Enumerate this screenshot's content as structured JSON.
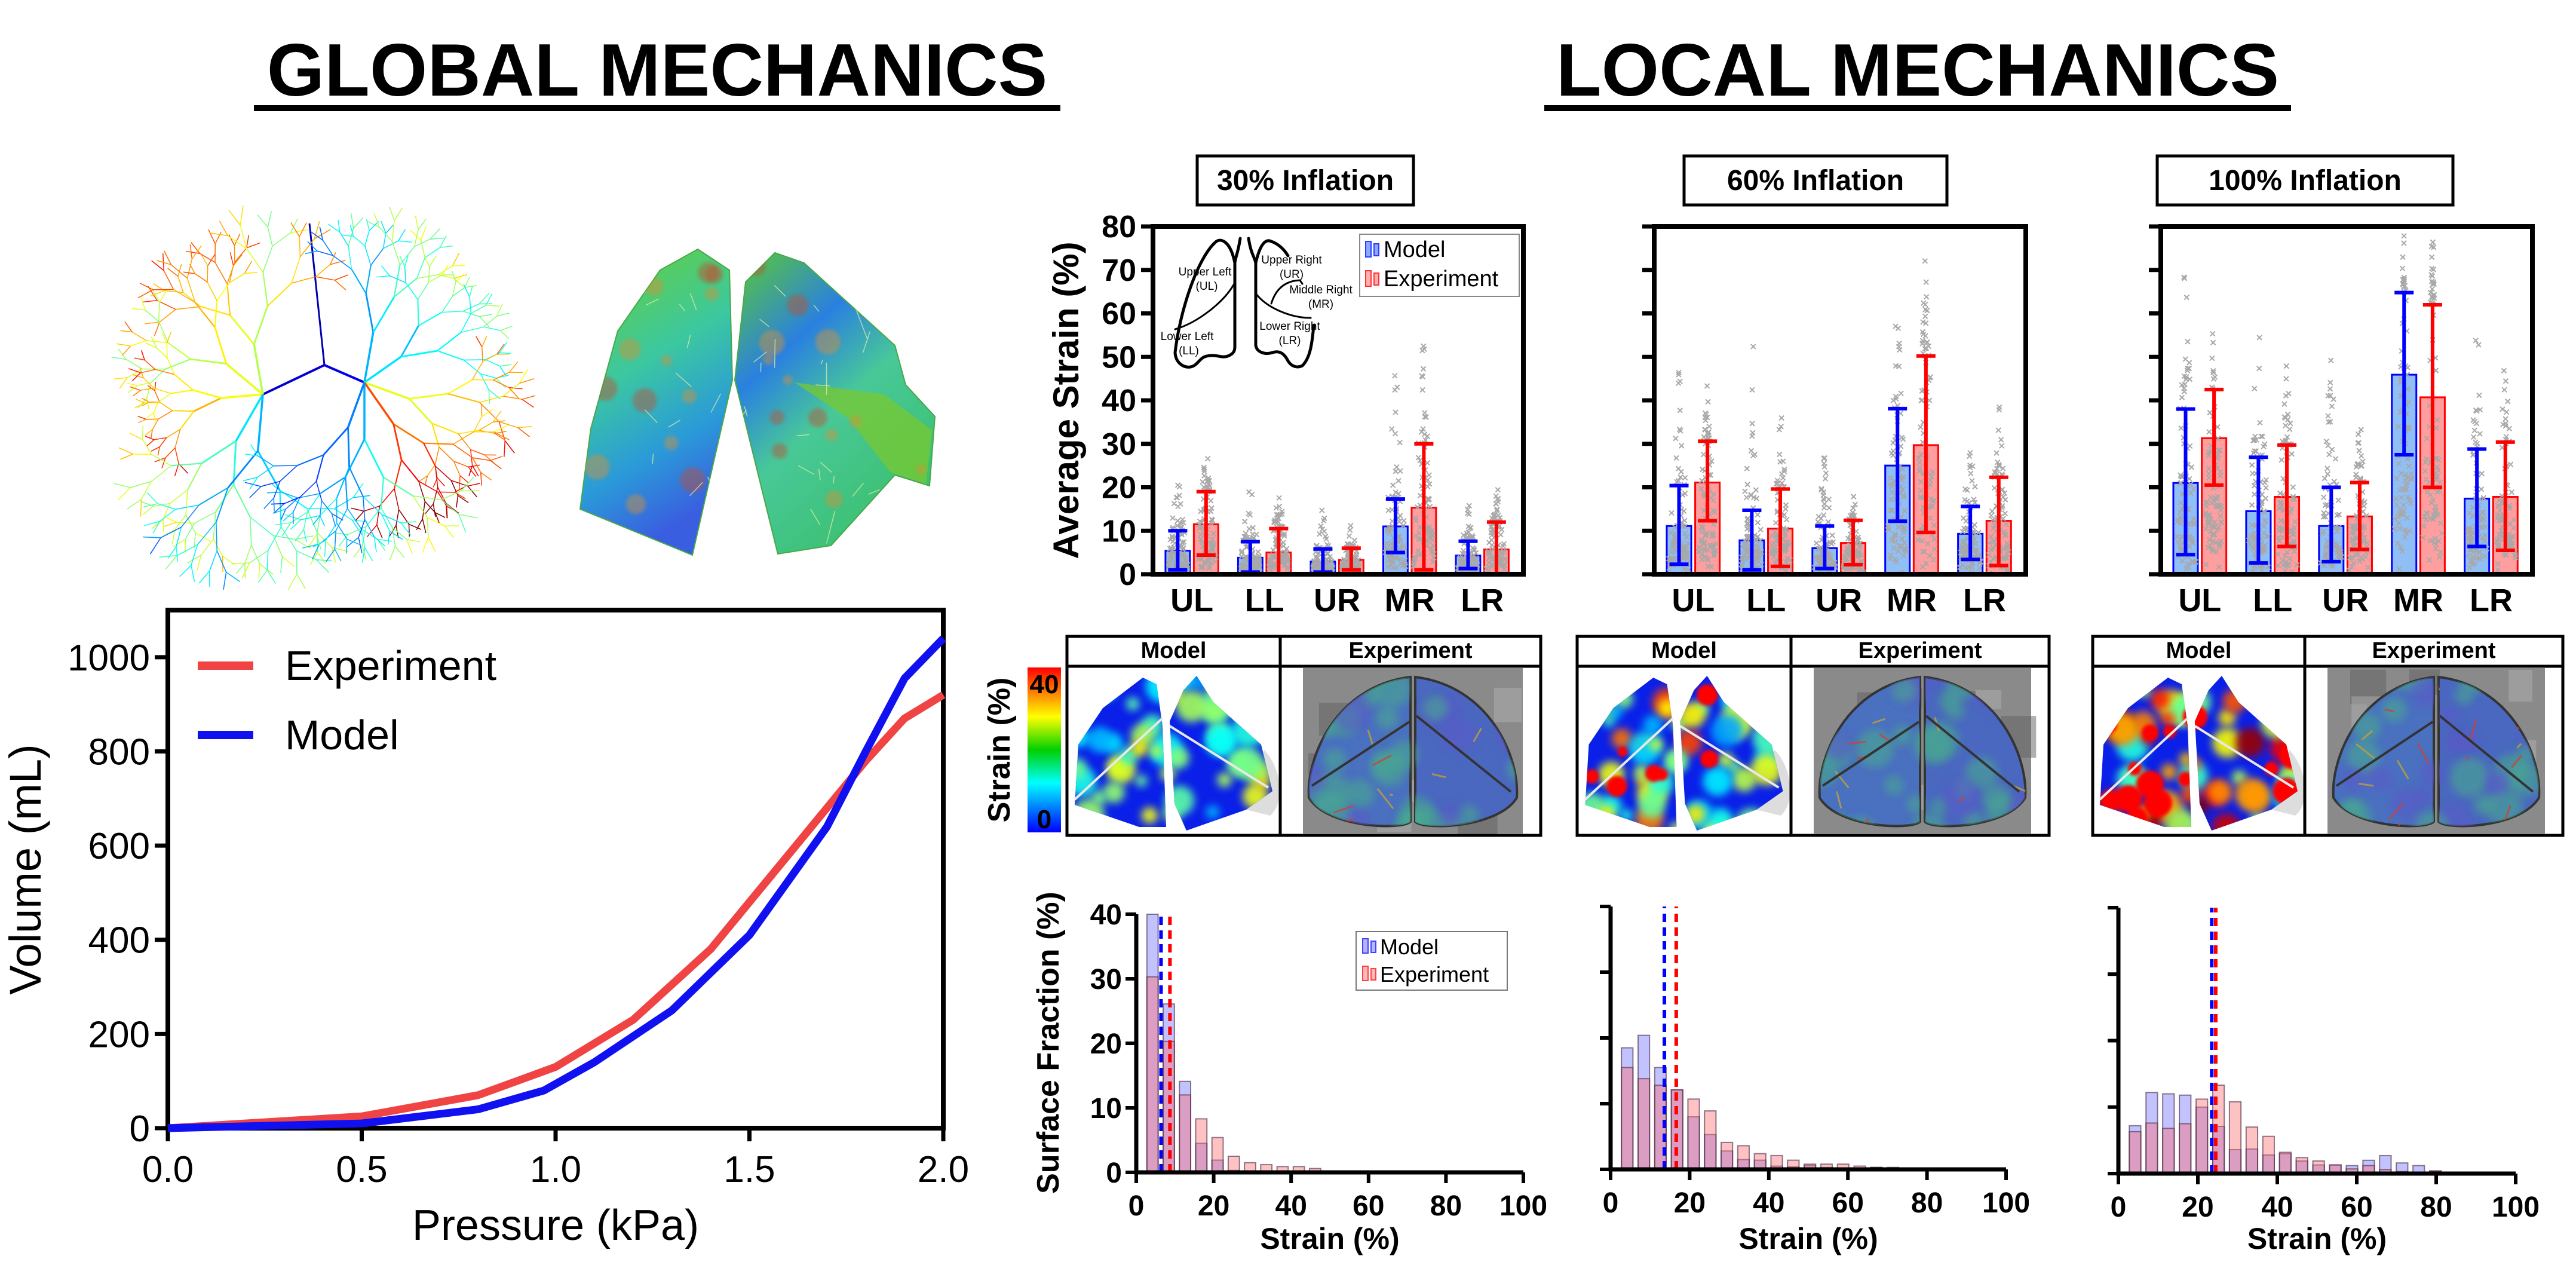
{
  "titles": {
    "global": "GLOBAL MECHANICS",
    "local": "LOCAL MECHANICS"
  },
  "colors": {
    "model": "#0000ff",
    "experiment": "#ff0000",
    "model_fill": "#90bff5",
    "experiment_fill": "#ff9e9e",
    "global_experiment": "#f04444",
    "global_model": "#1010f0"
  },
  "lobe_diagram": {
    "upper_left": "Upper Left",
    "upper_left_abbr": "(UL)",
    "lower_left": "Lower Left",
    "lower_left_abbr": "(LL)",
    "upper_right": "Upper Right",
    "upper_right_abbr": "(UR)",
    "middle_right": "Middle Right",
    "middle_right_abbr": "(MR)",
    "lower_right": "Lower Right",
    "lower_right_abbr": "(LR)"
  },
  "strain_maps": {
    "colorbar": {
      "label": "Strain (%)",
      "max": "40",
      "min": "0",
      "colormap": "jet"
    },
    "panels": [
      {
        "model": "Model",
        "experiment": "Experiment",
        "level": 0.3
      },
      {
        "model": "Model",
        "experiment": "Experiment",
        "level": 0.6
      },
      {
        "model": "Model",
        "experiment": "Experiment",
        "level": 1.0
      }
    ]
  },
  "chart_data": [
    {
      "type": "line",
      "xlabel": "Pressure (kPa)",
      "ylabel": "Volume (mL)",
      "xlim": [
        0,
        2
      ],
      "ylim": [
        0,
        1100
      ],
      "xticks": [
        "0.0",
        "0.5",
        "1.0",
        "1.5",
        "2.0"
      ],
      "yticks": [
        "0",
        "200",
        "400",
        "600",
        "800",
        "1000"
      ],
      "legend": "top-left",
      "grid": false,
      "series": [
        {
          "name": "Experiment",
          "x": [
            0,
            0.5,
            0.8,
            1.0,
            1.2,
            1.4,
            1.6,
            1.8,
            1.9,
            2.0
          ],
          "y": [
            0,
            25,
            70,
            130,
            230,
            380,
            580,
            780,
            870,
            920
          ]
        },
        {
          "name": "Model",
          "x": [
            0,
            0.5,
            0.8,
            0.97,
            1.1,
            1.3,
            1.5,
            1.7,
            1.8,
            1.9,
            2.0
          ],
          "y": [
            0,
            10,
            40,
            80,
            140,
            250,
            410,
            640,
            800,
            955,
            1040
          ]
        }
      ]
    },
    {
      "type": "bar",
      "title": "30% Inflation",
      "ylabel": "Average Strain (%)",
      "ylim": [
        0,
        80
      ],
      "yticks": [
        "0",
        "10",
        "20",
        "30",
        "40",
        "50",
        "60",
        "70",
        "80"
      ],
      "categories": [
        "UL",
        "LL",
        "UR",
        "MR",
        "LR"
      ],
      "legend": "top-right",
      "series": [
        {
          "name": "Model",
          "values": [
            5.4,
            3.8,
            2.9,
            11,
            4.3
          ],
          "error_low": [
            1,
            0.5,
            0.5,
            5,
            1.3
          ],
          "error_high": [
            10,
            7.5,
            5.8,
            17.3,
            7.6
          ],
          "scatter_max": [
            27,
            24.5,
            17,
            54,
            18
          ]
        },
        {
          "name": "Experiment",
          "values": [
            11.5,
            5,
            3.3,
            15.3,
            5.7
          ],
          "error_low": [
            4.4,
            0,
            1,
            1,
            0
          ],
          "error_high": [
            19,
            10.5,
            6,
            30,
            12
          ],
          "scatter_max": [
            32,
            21,
            11.5,
            57,
            22
          ]
        }
      ]
    },
    {
      "type": "bar",
      "title": "60% Inflation",
      "ylim": [
        0,
        80
      ],
      "categories": [
        "UL",
        "LL",
        "UR",
        "MR",
        "LR"
      ],
      "series": [
        {
          "name": "Model",
          "values": [
            11.1,
            7.8,
            6,
            25,
            9.3
          ],
          "error_low": [
            2.3,
            1,
            1.3,
            12.2,
            3.4
          ],
          "error_high": [
            20.4,
            14.7,
            11.1,
            38.1,
            15.6
          ],
          "scatter_max": [
            54,
            53,
            32,
            73,
            39
          ]
        },
        {
          "name": "Experiment",
          "values": [
            21.1,
            10.5,
            7.2,
            29.7,
            12.3
          ],
          "error_low": [
            12.3,
            1.8,
            2.2,
            9.6,
            2
          ],
          "error_high": [
            30.6,
            19.6,
            12.4,
            50.2,
            22.3
          ],
          "scatter_max": [
            47,
            39,
            21,
            80,
            43
          ]
        }
      ]
    },
    {
      "type": "bar",
      "title": "100% Inflation",
      "ylim": [
        0,
        80
      ],
      "categories": [
        "UL",
        "LL",
        "UR",
        "MR",
        "LR"
      ],
      "series": [
        {
          "name": "Model",
          "values": [
            21,
            14.5,
            11.1,
            45.9,
            17.4
          ],
          "error_low": [
            4.5,
            2.6,
            2.9,
            27.5,
            6.4
          ],
          "error_high": [
            38,
            26.9,
            20,
            64.8,
            28.8
          ],
          "scatter_max": [
            75,
            72,
            60,
            79,
            63
          ]
        },
        {
          "name": "Experiment",
          "values": [
            31.3,
            17.8,
            13.3,
            40.7,
            17.8
          ],
          "error_low": [
            20.5,
            6.4,
            5.7,
            20,
            5.5
          ],
          "error_high": [
            42.5,
            29.7,
            21.1,
            62,
            30.4
          ],
          "scatter_max": [
            61,
            51,
            36,
            80,
            56
          ]
        }
      ]
    },
    {
      "type": "bar",
      "xlabel": "Strain (%)",
      "ylabel": "Surface Fraction (%)",
      "xlim": [
        0,
        100
      ],
      "ylim": [
        0,
        40
      ],
      "xticks": [
        "0",
        "20",
        "40",
        "60",
        "80",
        "100"
      ],
      "yticks": [
        "0",
        "10",
        "20",
        "30",
        "40"
      ],
      "legend": "top-right",
      "bins": [
        4.2,
        8.4,
        12.6,
        16.8,
        21,
        25.2,
        29.4,
        33.6,
        37.8,
        42,
        46.2,
        50.4
      ],
      "series": [
        {
          "name": "Model",
          "values": [
            40,
            26.1,
            14.1,
            4.5,
            1.9,
            0.3,
            0.2,
            0.1,
            0,
            0,
            0,
            0.2
          ],
          "mean": 6.4
        },
        {
          "name": "Experiment",
          "values": [
            30.3,
            20.3,
            12,
            8.3,
            5.4,
            2.5,
            1.5,
            1.2,
            0.9,
            0.9,
            0.6,
            0.2
          ],
          "mean": 8.7
        }
      ]
    },
    {
      "type": "bar",
      "xlabel": "Strain (%)",
      "xlim": [
        0,
        100
      ],
      "ylim": [
        0,
        40
      ],
      "xticks": [
        "0",
        "20",
        "40",
        "60",
        "80",
        "100"
      ],
      "bins": [
        4.2,
        8.4,
        12.6,
        16.8,
        21,
        25.2,
        29.4,
        33.6,
        37.8,
        42,
        46.2,
        50.4,
        54.6,
        58.8,
        63,
        67.2,
        71.4
      ],
      "series": [
        {
          "name": "Model",
          "values": [
            18.5,
            20.4,
            15.5,
            12.1,
            8,
            5.3,
            2.8,
            1.5,
            1.4,
            0.5,
            0.4,
            0.6,
            0.3,
            0.2,
            0.2,
            0.3,
            0.1
          ],
          "mean": 13.6
        },
        {
          "name": "Experiment",
          "values": [
            15.5,
            13.8,
            12.8,
            12.1,
            10.7,
            8.9,
            4.1,
            3.6,
            2.4,
            2.1,
            1.4,
            0.8,
            0.8,
            0.8,
            0.5,
            0.3,
            0.3
          ],
          "mean": 16.6
        }
      ]
    },
    {
      "type": "bar",
      "xlabel": "Strain (%)",
      "xlim": [
        0,
        100
      ],
      "ylim": [
        0,
        40
      ],
      "xticks": [
        "0",
        "20",
        "40",
        "60",
        "80",
        "100"
      ],
      "bins": [
        4.2,
        8.4,
        12.6,
        16.8,
        21,
        25.2,
        29.4,
        33.6,
        37.8,
        42,
        46.2,
        50.4,
        54.6,
        58.8,
        63,
        67.2,
        71.4,
        75.6,
        79.8
      ],
      "series": [
        {
          "name": "Model",
          "values": [
            7.2,
            12.2,
            12,
            11.8,
            10,
            7.1,
            3.6,
            3.7,
            2.8,
            3,
            1.9,
            1.3,
            1.3,
            1.2,
            2,
            2.7,
            1.6,
            1.2,
            0.4
          ],
          "mean": 23.5
        },
        {
          "name": "Experiment",
          "values": [
            6.3,
            7.6,
            6.8,
            7.5,
            11.2,
            13.3,
            10.8,
            7,
            5.6,
            3.2,
            2.4,
            1.9,
            1.3,
            0.7,
            1.2,
            0.6,
            0.3,
            0.2,
            0.4
          ],
          "mean": 24.5
        }
      ]
    }
  ]
}
